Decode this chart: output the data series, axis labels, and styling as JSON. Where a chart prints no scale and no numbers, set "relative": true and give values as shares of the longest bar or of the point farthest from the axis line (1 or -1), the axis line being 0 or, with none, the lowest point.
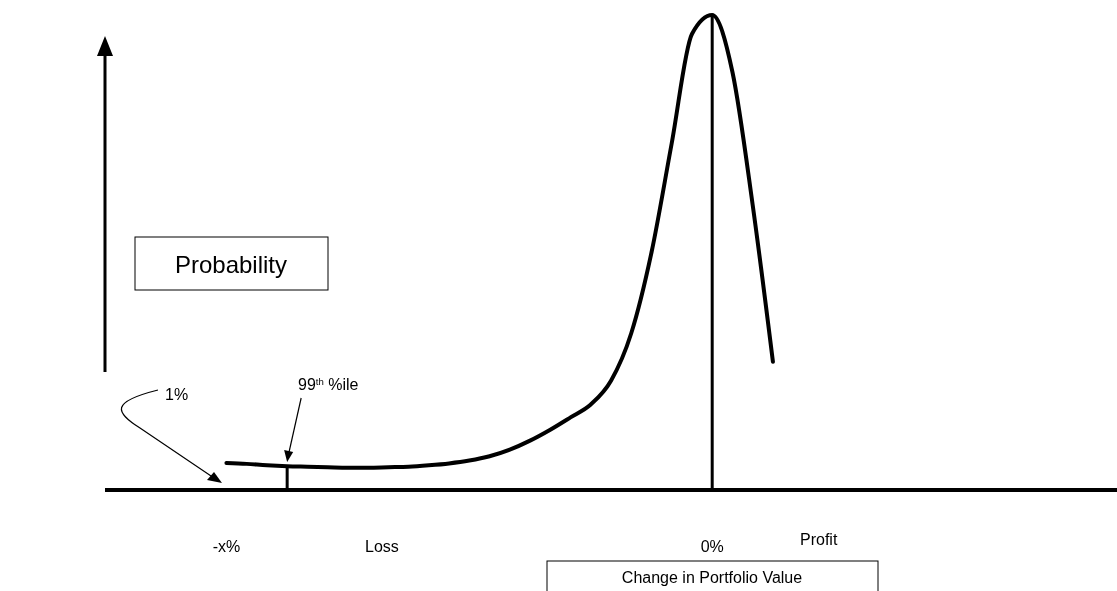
{
  "chart_data": {
    "type": "line",
    "relative": true,
    "color": "#000000",
    "xlabel": "Change in Portfolio Value",
    "ylabel": "Probability",
    "categories": [
      null,
      null,
      null,
      null,
      null,
      null,
      "-x%",
      null,
      null,
      null,
      null,
      null,
      null,
      null,
      null,
      null,
      null,
      null,
      null,
      null,
      null,
      null,
      null,
      null,
      null,
      null,
      null,
      null,
      null,
      null,
      "0%",
      null,
      null,
      null,
      null,
      null,
      null,
      null,
      null,
      null,
      null,
      null,
      null,
      null,
      null,
      null,
      null,
      null,
      null,
      null,
      null
    ],
    "values": [
      null,
      null,
      null,
      null,
      null,
      null,
      0.057,
      0.055,
      0.052,
      0.05,
      0.049,
      0.048,
      0.047,
      0.047,
      0.048,
      0.049,
      0.052,
      0.056,
      0.062,
      0.071,
      0.085,
      0.104,
      0.127,
      0.153,
      0.18,
      0.23,
      0.33,
      0.5,
      0.73,
      0.96,
      1,
      0.88,
      0.6,
      0.27,
      null,
      null,
      null,
      null,
      null,
      null,
      null,
      null,
      null,
      null,
      null,
      null,
      null,
      null,
      null,
      null,
      null
    ],
    "ref_lines": [
      {
        "axis": "x",
        "value": "0%"
      }
    ],
    "annotations": [
      "1%",
      "99$^{th}$ %ile",
      "Loss",
      "Profit"
    ]
  }
}
